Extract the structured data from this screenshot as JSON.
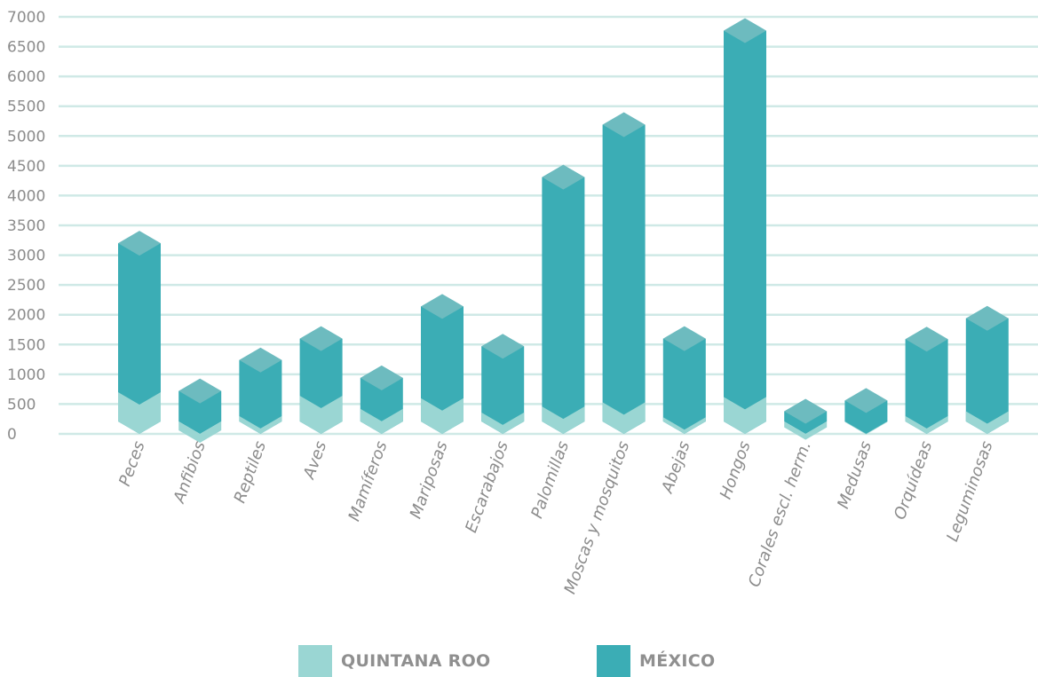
{
  "chart_data": {
    "type": "bar",
    "stacked_3d": true,
    "title": "",
    "xlabel": "",
    "ylabel": "",
    "ylim": [
      0,
      7000
    ],
    "y_ticks": [
      "0",
      "500",
      "1000",
      "1500",
      "2000",
      "2500",
      "3000",
      "3500",
      "4000",
      "4500",
      "5000",
      "5500",
      "6000",
      "6500",
      "7000"
    ],
    "categories": [
      "Peces",
      "Anfibios",
      "Reptiles",
      "Aves",
      "Mamíferos",
      "Mariposas",
      "Escarabajos",
      "Palomillas",
      "Moscas y mosquitos",
      "Abejas",
      "Hongos",
      "Corales escl. herm.",
      "Medusas",
      "Orquídeas",
      "Leguminosas"
    ],
    "series": [
      {
        "name": "QUINTANA ROO",
        "color": "#9ad6d3",
        "values": [
          700,
          60,
          300,
          640,
          420,
          600,
          360,
          460,
          530,
          280,
          620,
          110,
          200,
          300,
          380
        ]
      },
      {
        "name": "MÉXICO",
        "color": "#3badb5",
        "values": [
          3200,
          720,
          1240,
          1600,
          940,
          2140,
          1470,
          4310,
          5190,
          1600,
          6770,
          380,
          560,
          1590,
          1940
        ]
      }
    ],
    "grid": true,
    "grid_color": "#cfe9e6",
    "top_face_color": "#6dbbbf",
    "axis_text_color": "#8c8c8c",
    "legend_position": "bottom"
  }
}
